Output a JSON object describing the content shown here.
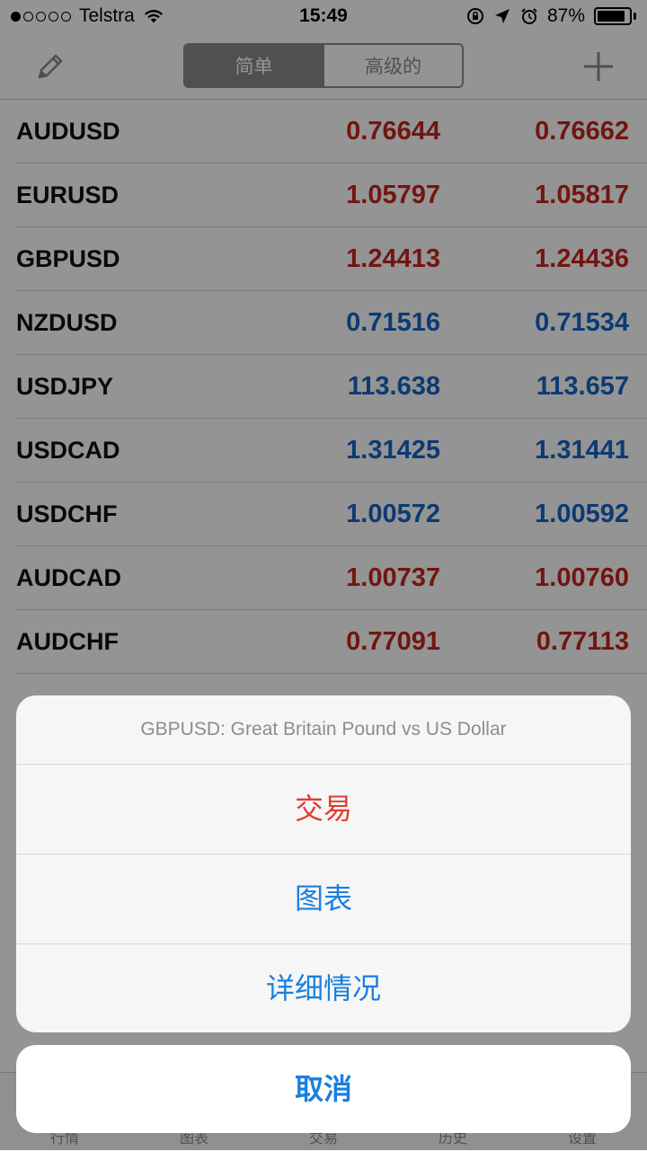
{
  "status_bar": {
    "carrier": "Telstra",
    "time": "15:49",
    "battery_percent": "87%",
    "battery_level": 0.87,
    "signal_bars_filled": 1,
    "signal_bars_total": 5
  },
  "nav": {
    "segments": [
      {
        "label": "简单",
        "active": true
      },
      {
        "label": "高级的",
        "active": false
      }
    ]
  },
  "quotes": [
    {
      "symbol": "AUDUSD",
      "bid": "0.76644",
      "ask": "0.76662",
      "color": "#c4251d"
    },
    {
      "symbol": "EURUSD",
      "bid": "1.05797",
      "ask": "1.05817",
      "color": "#c4251d"
    },
    {
      "symbol": "GBPUSD",
      "bid": "1.24413",
      "ask": "1.24436",
      "color": "#c4251d"
    },
    {
      "symbol": "NZDUSD",
      "bid": "0.71516",
      "ask": "0.71534",
      "color": "#1665c6"
    },
    {
      "symbol": "USDJPY",
      "bid": "113.638",
      "ask": "113.657",
      "color": "#1665c6"
    },
    {
      "symbol": "USDCAD",
      "bid": "1.31425",
      "ask": "1.31441",
      "color": "#1665c6"
    },
    {
      "symbol": "USDCHF",
      "bid": "1.00572",
      "ask": "1.00592",
      "color": "#1665c6"
    },
    {
      "symbol": "AUDCAD",
      "bid": "1.00737",
      "ask": "1.00760",
      "color": "#c4251d"
    },
    {
      "symbol": "AUDCHF",
      "bid": "0.77091",
      "ask": "0.77113",
      "color": "#c4251d"
    }
  ],
  "tabs": [
    {
      "label": "行情"
    },
    {
      "label": "图表"
    },
    {
      "label": "交易"
    },
    {
      "label": "历史"
    },
    {
      "label": "设置"
    }
  ],
  "action_sheet": {
    "title": "GBPUSD: Great Britain Pound vs US Dollar",
    "actions": [
      {
        "label": "交易",
        "style": "destructive"
      },
      {
        "label": "图表",
        "style": "default"
      },
      {
        "label": "详细情况",
        "style": "default"
      }
    ],
    "cancel_label": "取消"
  },
  "icons": {
    "edit": "pencil-icon",
    "add": "plus-icon",
    "wifi": "wifi-icon",
    "lock": "rotation-lock-icon",
    "location": "location-arrow-icon",
    "alarm": "alarm-clock-icon"
  }
}
